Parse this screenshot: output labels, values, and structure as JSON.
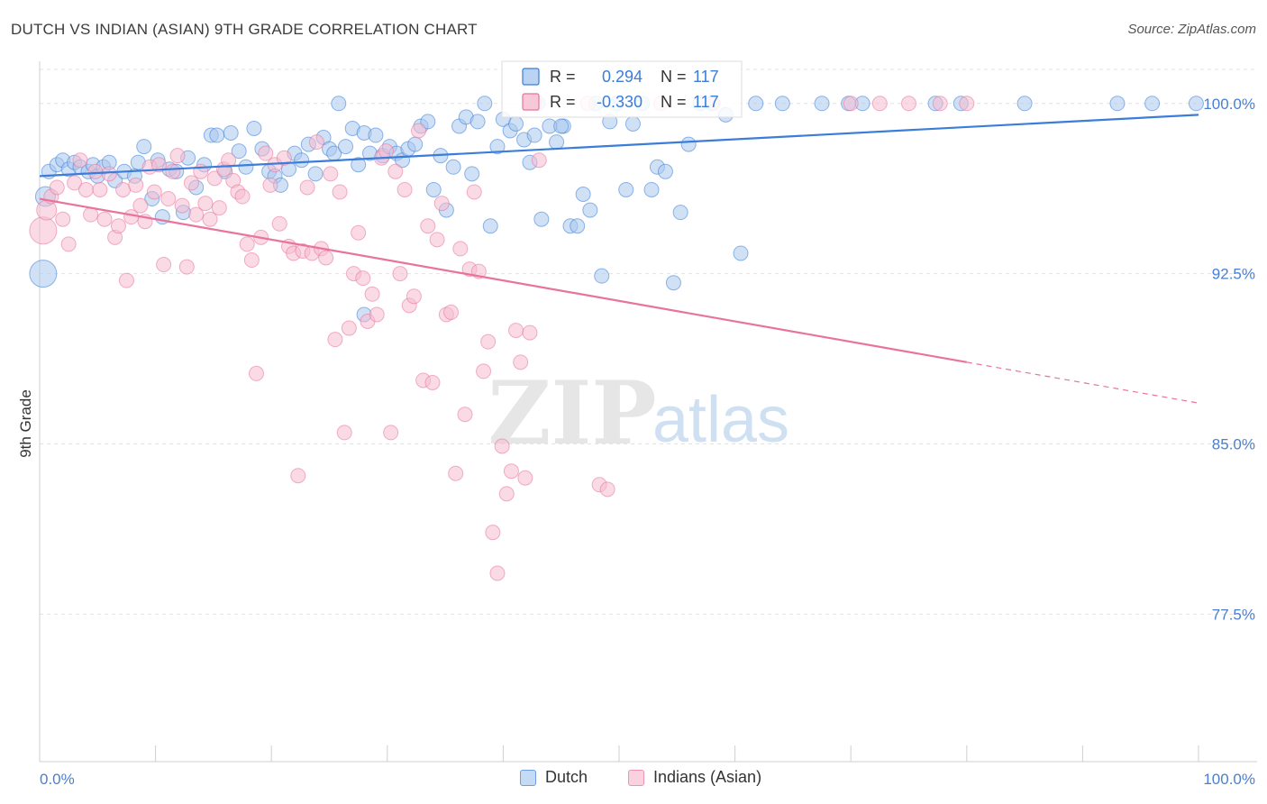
{
  "title": "DUTCH VS INDIAN (ASIAN) 9TH GRADE CORRELATION CHART",
  "source": "Source: ZipAtlas.com",
  "watermark": {
    "zip": "ZIP",
    "atlas": "atlas"
  },
  "chart_data": {
    "type": "scatter",
    "title": "DUTCH VS INDIAN (ASIAN) 9TH GRADE CORRELATION CHART",
    "xlabel": "",
    "ylabel": "9th Grade",
    "xlim": [
      0,
      100
    ],
    "ylim": [
      71,
      101.5
    ],
    "x_tick_labels": [
      "0.0%",
      "100.0%"
    ],
    "y_ticks": [
      100.0,
      92.5,
      85.0,
      77.5
    ],
    "y_tick_labels": [
      "100.0%",
      "92.5%",
      "85.0%",
      "77.5%"
    ],
    "grid": true,
    "legend_position": "bottom",
    "stats": [
      {
        "r_label": "R =",
        "r": "0.294",
        "n_label": "N =",
        "n": "117"
      },
      {
        "r_label": "R =",
        "r": "-0.330",
        "n_label": "N =",
        "n": "117"
      }
    ],
    "series": [
      {
        "name": "Dutch",
        "color": "#3b7dd8",
        "fill": "#aac8ef",
        "trend": {
          "x": [
            0,
            100
          ],
          "y": [
            96.8,
            99.5
          ],
          "dashed_from": null
        },
        "points": [
          [
            0.3,
            92.5
          ],
          [
            0.5,
            95.9
          ],
          [
            0.8,
            97.0
          ],
          [
            1.5,
            97.3
          ],
          [
            2.0,
            97.5
          ],
          [
            2.5,
            97.1
          ],
          [
            3.0,
            97.4
          ],
          [
            3.5,
            97.2
          ],
          [
            4.2,
            97.0
          ],
          [
            4.6,
            97.3
          ],
          [
            5.0,
            96.8
          ],
          [
            5.5,
            97.2
          ],
          [
            6.0,
            97.4
          ],
          [
            6.5,
            96.6
          ],
          [
            7.3,
            97.0
          ],
          [
            8.2,
            96.8
          ],
          [
            8.5,
            97.4
          ],
          [
            9.0,
            98.1
          ],
          [
            9.7,
            95.8
          ],
          [
            10.2,
            97.5
          ],
          [
            10.6,
            95.0
          ],
          [
            11.2,
            97.1
          ],
          [
            11.8,
            97.0
          ],
          [
            12.4,
            95.2
          ],
          [
            12.8,
            97.6
          ],
          [
            13.5,
            96.3
          ],
          [
            14.2,
            97.3
          ],
          [
            14.8,
            98.6
          ],
          [
            15.3,
            98.6
          ],
          [
            16.0,
            97.0
          ],
          [
            16.5,
            98.7
          ],
          [
            17.2,
            97.9
          ],
          [
            17.8,
            97.2
          ],
          [
            18.5,
            98.9
          ],
          [
            19.2,
            98.0
          ],
          [
            19.8,
            97.0
          ],
          [
            20.3,
            96.8
          ],
          [
            20.8,
            96.4
          ],
          [
            21.5,
            97.1
          ],
          [
            22.0,
            97.8
          ],
          [
            22.6,
            97.5
          ],
          [
            23.2,
            98.2
          ],
          [
            23.8,
            96.9
          ],
          [
            24.5,
            98.5
          ],
          [
            25.0,
            98.0
          ],
          [
            25.4,
            97.8
          ],
          [
            25.8,
            100.0
          ],
          [
            26.4,
            98.1
          ],
          [
            27.0,
            98.9
          ],
          [
            27.5,
            97.3
          ],
          [
            28.0,
            98.7
          ],
          [
            28.5,
            97.8
          ],
          [
            29.0,
            98.6
          ],
          [
            29.6,
            97.7
          ],
          [
            30.2,
            98.1
          ],
          [
            30.8,
            97.8
          ],
          [
            31.3,
            97.5
          ],
          [
            31.8,
            98.0
          ],
          [
            32.4,
            98.2
          ],
          [
            32.9,
            99.0
          ],
          [
            33.5,
            99.2
          ],
          [
            34.0,
            96.2
          ],
          [
            34.6,
            97.7
          ],
          [
            35.1,
            95.3
          ],
          [
            35.7,
            97.2
          ],
          [
            36.2,
            99.0
          ],
          [
            36.8,
            99.4
          ],
          [
            37.3,
            96.9
          ],
          [
            37.8,
            99.2
          ],
          [
            38.4,
            100.0
          ],
          [
            38.9,
            94.6
          ],
          [
            39.5,
            98.1
          ],
          [
            40.0,
            99.3
          ],
          [
            40.6,
            98.8
          ],
          [
            41.1,
            99.1
          ],
          [
            41.8,
            98.4
          ],
          [
            42.3,
            97.4
          ],
          [
            42.7,
            98.6
          ],
          [
            43.3,
            94.9
          ],
          [
            44.0,
            99.0
          ],
          [
            44.6,
            98.3
          ],
          [
            45.2,
            99.0
          ],
          [
            45.8,
            94.6
          ],
          [
            46.4,
            94.6
          ],
          [
            46.9,
            96.0
          ],
          [
            47.5,
            95.3
          ],
          [
            48.0,
            100.0
          ],
          [
            48.5,
            92.4
          ],
          [
            49.2,
            99.2
          ],
          [
            49.8,
            100.0
          ],
          [
            50.6,
            96.2
          ],
          [
            51.2,
            99.1
          ],
          [
            52.0,
            100.0
          ],
          [
            52.8,
            96.2
          ],
          [
            53.3,
            97.2
          ],
          [
            54.0,
            97.0
          ],
          [
            54.7,
            92.1
          ],
          [
            55.3,
            95.2
          ],
          [
            56.0,
            98.2
          ],
          [
            57.0,
            100.0
          ],
          [
            58.0,
            100.0
          ],
          [
            59.2,
            99.5
          ],
          [
            60.5,
            93.4
          ],
          [
            61.8,
            100.0
          ],
          [
            64.1,
            100.0
          ],
          [
            67.5,
            100.0
          ],
          [
            69.8,
            100.0
          ],
          [
            71.0,
            100.0
          ],
          [
            77.3,
            100.0
          ],
          [
            79.5,
            100.0
          ],
          [
            85.0,
            100.0
          ],
          [
            93.0,
            100.0
          ],
          [
            96.0,
            100.0
          ],
          [
            99.8,
            100.0
          ],
          [
            28.0,
            90.7
          ],
          [
            45.0,
            99.0
          ],
          [
            43.0,
            100.0
          ]
        ]
      },
      {
        "name": "Indians (Asian)",
        "color": "#e8739b",
        "fill": "#f6bcd0",
        "trend": {
          "x": [
            0,
            100
          ],
          "y": [
            95.8,
            86.8
          ],
          "dashed_from": 80
        },
        "points": [
          [
            0.3,
            94.4
          ],
          [
            0.6,
            95.3
          ],
          [
            1.0,
            95.9
          ],
          [
            1.5,
            96.3
          ],
          [
            2.0,
            94.9
          ],
          [
            2.5,
            93.8
          ],
          [
            3.0,
            96.5
          ],
          [
            3.5,
            97.5
          ],
          [
            4.0,
            96.2
          ],
          [
            4.4,
            95.1
          ],
          [
            4.8,
            97.0
          ],
          [
            5.2,
            96.2
          ],
          [
            5.6,
            94.9
          ],
          [
            6.0,
            96.9
          ],
          [
            6.5,
            94.1
          ],
          [
            6.8,
            94.6
          ],
          [
            7.2,
            96.2
          ],
          [
            7.5,
            92.2
          ],
          [
            7.9,
            95.0
          ],
          [
            8.3,
            96.4
          ],
          [
            8.7,
            95.5
          ],
          [
            9.1,
            94.8
          ],
          [
            9.5,
            97.2
          ],
          [
            9.9,
            96.1
          ],
          [
            10.3,
            97.3
          ],
          [
            10.7,
            92.9
          ],
          [
            11.1,
            95.8
          ],
          [
            11.5,
            97.0
          ],
          [
            11.9,
            97.7
          ],
          [
            12.3,
            95.5
          ],
          [
            12.7,
            92.8
          ],
          [
            13.1,
            96.5
          ],
          [
            13.5,
            95.1
          ],
          [
            13.9,
            97.0
          ],
          [
            14.3,
            95.6
          ],
          [
            14.7,
            94.9
          ],
          [
            15.1,
            96.7
          ],
          [
            15.5,
            95.4
          ],
          [
            15.9,
            97.1
          ],
          [
            16.3,
            97.5
          ],
          [
            16.7,
            96.6
          ],
          [
            17.1,
            96.1
          ],
          [
            17.5,
            95.9
          ],
          [
            17.9,
            93.8
          ],
          [
            18.3,
            93.1
          ],
          [
            18.7,
            88.1
          ],
          [
            19.1,
            94.1
          ],
          [
            19.5,
            97.8
          ],
          [
            19.9,
            96.4
          ],
          [
            20.3,
            97.3
          ],
          [
            20.7,
            94.7
          ],
          [
            21.1,
            97.6
          ],
          [
            21.5,
            93.7
          ],
          [
            21.9,
            93.4
          ],
          [
            22.3,
            83.6
          ],
          [
            22.7,
            93.5
          ],
          [
            23.1,
            96.3
          ],
          [
            23.5,
            93.4
          ],
          [
            23.9,
            98.3
          ],
          [
            24.3,
            93.6
          ],
          [
            24.7,
            93.2
          ],
          [
            25.1,
            96.9
          ],
          [
            25.5,
            89.6
          ],
          [
            25.9,
            96.1
          ],
          [
            26.3,
            85.5
          ],
          [
            26.7,
            90.1
          ],
          [
            27.1,
            92.5
          ],
          [
            27.5,
            94.3
          ],
          [
            27.9,
            92.3
          ],
          [
            28.3,
            90.4
          ],
          [
            28.7,
            91.6
          ],
          [
            29.1,
            90.7
          ],
          [
            29.5,
            97.6
          ],
          [
            29.9,
            97.9
          ],
          [
            30.3,
            85.5
          ],
          [
            30.7,
            97.0
          ],
          [
            31.1,
            92.5
          ],
          [
            31.5,
            96.2
          ],
          [
            31.9,
            91.1
          ],
          [
            32.3,
            91.5
          ],
          [
            32.7,
            98.8
          ],
          [
            33.1,
            87.8
          ],
          [
            33.5,
            94.6
          ],
          [
            33.9,
            87.7
          ],
          [
            34.3,
            94.0
          ],
          [
            34.7,
            95.6
          ],
          [
            35.1,
            90.7
          ],
          [
            35.5,
            90.8
          ],
          [
            35.9,
            83.7
          ],
          [
            36.3,
            93.6
          ],
          [
            36.7,
            86.3
          ],
          [
            37.1,
            92.7
          ],
          [
            37.5,
            96.1
          ],
          [
            37.9,
            92.6
          ],
          [
            38.3,
            88.2
          ],
          [
            38.7,
            89.5
          ],
          [
            39.1,
            81.1
          ],
          [
            39.5,
            79.3
          ],
          [
            39.9,
            84.9
          ],
          [
            40.3,
            82.8
          ],
          [
            40.7,
            83.8
          ],
          [
            41.1,
            90.0
          ],
          [
            41.5,
            88.6
          ],
          [
            41.9,
            83.5
          ],
          [
            42.3,
            89.9
          ],
          [
            42.7,
            100.0
          ],
          [
            43.1,
            97.5
          ],
          [
            47.3,
            100.0
          ],
          [
            48.3,
            83.2
          ],
          [
            49.0,
            83.0
          ],
          [
            53.6,
            100.0
          ],
          [
            58.1,
            100.0
          ],
          [
            70.0,
            100.0
          ],
          [
            72.5,
            100.0
          ],
          [
            75.0,
            100.0
          ],
          [
            77.7,
            100.0
          ],
          [
            80.0,
            100.0
          ]
        ]
      }
    ]
  }
}
